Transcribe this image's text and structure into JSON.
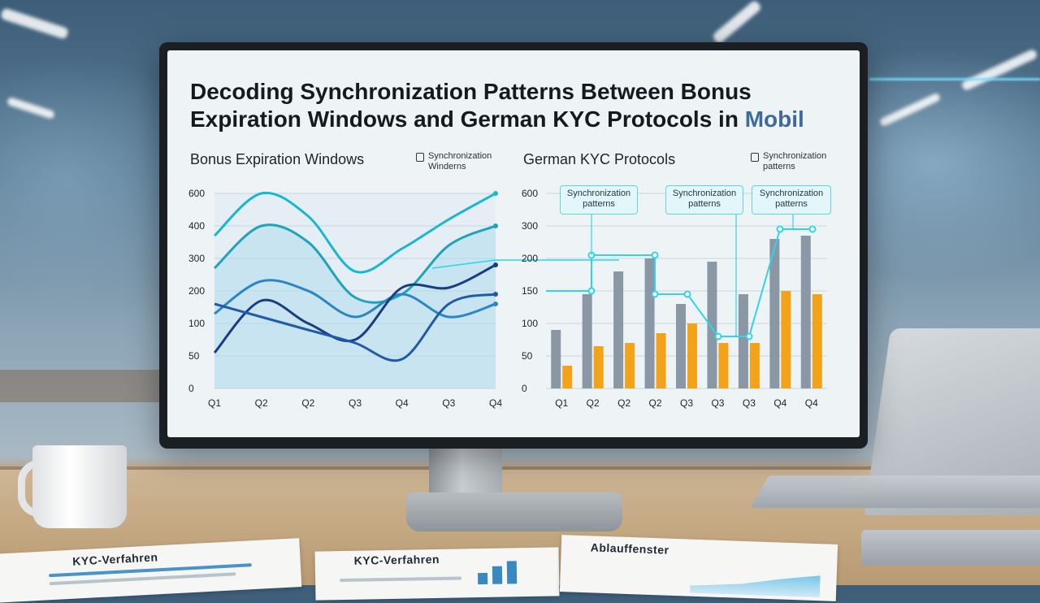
{
  "screen": {
    "title_main": "Decoding Synchronization Patterns Between Bonus Expiration Windows and German KYC Protocols in",
    "logo_text": "Mobil"
  },
  "chart_data": [
    {
      "type": "line",
      "title": "Bonus Expiration Windows",
      "legend": {
        "label": "Synchronization Winderns",
        "icon": "lock-icon",
        "placement": "top-right"
      },
      "categories": [
        "Q1",
        "Q2",
        "Q2",
        "Q3",
        "Q4",
        "Q3",
        "Q4"
      ],
      "y_ticks": [
        600,
        400,
        300,
        200,
        100,
        50,
        0
      ],
      "series": [
        {
          "color": "#19b7cf",
          "values": [
            4.7,
            6.0,
            5.3,
            3.6,
            4.3,
            5.2,
            6.0
          ],
          "fill": false
        },
        {
          "color": "#1ea3bb",
          "values": [
            3.7,
            5.0,
            4.5,
            2.8,
            2.9,
            4.4,
            5.0
          ],
          "fill": true
        },
        {
          "color": "#2b86c4",
          "values": [
            2.3,
            3.3,
            3.0,
            2.2,
            2.9,
            2.2,
            2.6
          ],
          "fill": false
        },
        {
          "color": "#173e85",
          "values": [
            1.1,
            2.7,
            2.0,
            1.5,
            3.1,
            3.1,
            3.8
          ],
          "fill": false
        },
        {
          "color": "#1f5ba8",
          "values": [
            2.6,
            2.2,
            1.8,
            1.4,
            0.9,
            2.6,
            2.9
          ],
          "fill": false
        }
      ]
    },
    {
      "type": "bar",
      "title": "German KYC Protocols",
      "legend": {
        "label": "Synchronization patterns",
        "icon": "calendar-icon",
        "placement": "top-right"
      },
      "categories": [
        "Q1",
        "Q2",
        "Q2",
        "Q2",
        "Q3",
        "Q3",
        "Q3",
        "Q4",
        "Q4"
      ],
      "y_ticks": [
        600,
        300,
        200,
        150,
        100,
        50,
        0
      ],
      "series": [
        {
          "color": "#8a98a6",
          "values": [
            1.8,
            2.9,
            3.6,
            4.0,
            2.6,
            3.9,
            2.9,
            4.6,
            4.7
          ]
        },
        {
          "color": "#f2a31a",
          "values": [
            0.7,
            1.3,
            1.4,
            1.7,
            2.0,
            1.4,
            1.4,
            3.0,
            2.9
          ]
        }
      ],
      "sync_line": {
        "color": "#2fd3ea",
        "values": [
          3.0,
          3.0,
          4.1,
          4.1,
          2.9,
          2.9,
          1.6,
          1.6,
          4.9,
          4.9
        ]
      },
      "callouts": [
        "Synchronization patterns",
        "Synchronization patterns",
        "Synchronization patterns"
      ]
    }
  ],
  "desk_papers": [
    {
      "title": "KYC-Verfahren"
    },
    {
      "title": "KYC-Verfahren"
    },
    {
      "title": "Ablauffenster"
    }
  ]
}
